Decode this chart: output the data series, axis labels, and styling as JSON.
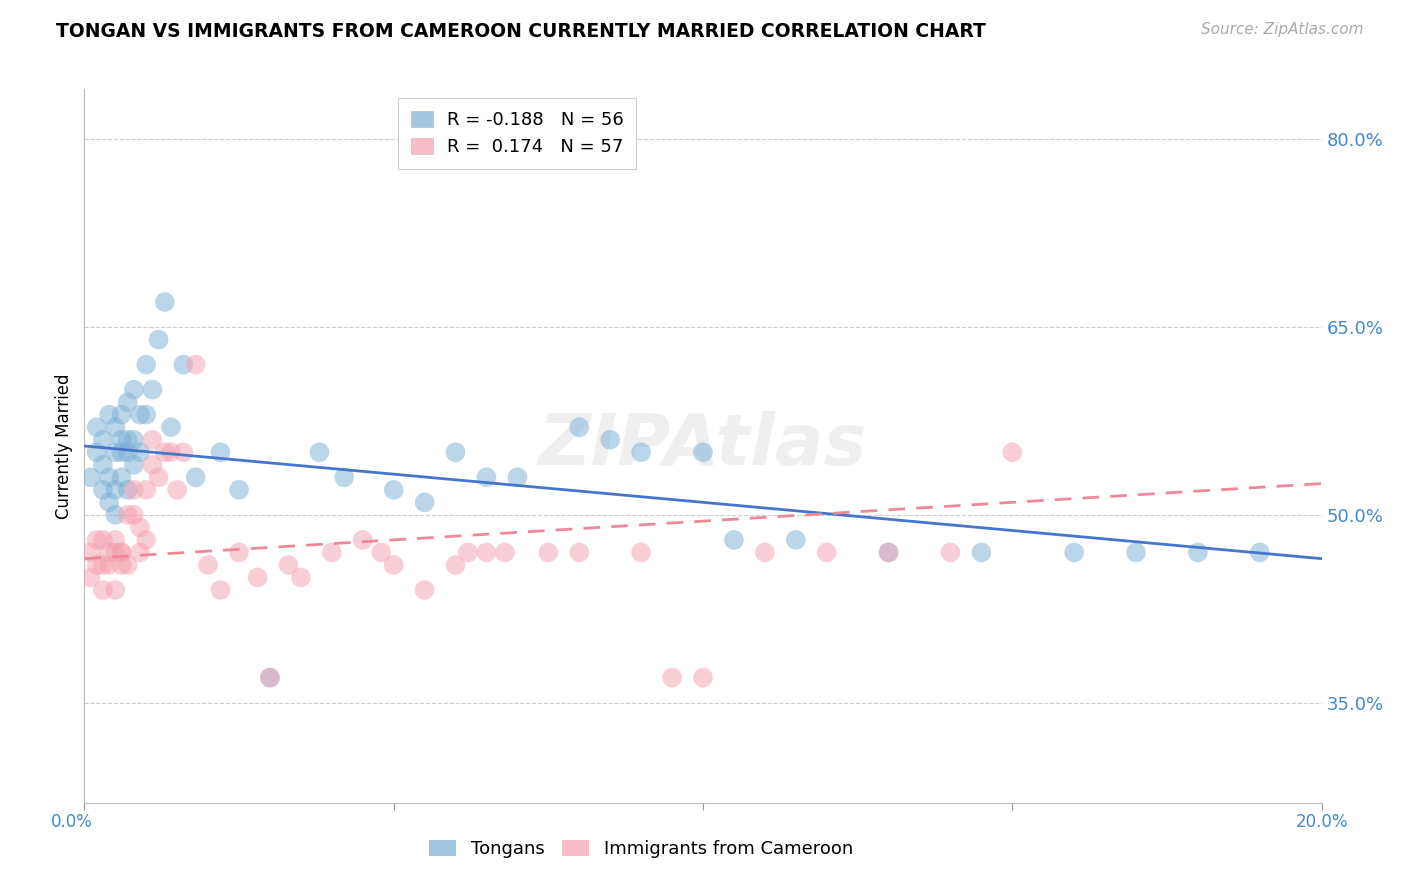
{
  "title": "TONGAN VS IMMIGRANTS FROM CAMEROON CURRENTLY MARRIED CORRELATION CHART",
  "source": "Source: ZipAtlas.com",
  "ylabel": "Currently Married",
  "y_ticks": [
    0.35,
    0.5,
    0.65,
    0.8
  ],
  "y_tick_labels": [
    "35.0%",
    "50.0%",
    "65.0%",
    "80.0%"
  ],
  "x_min": 0.0,
  "x_max": 0.2,
  "y_min": 0.27,
  "y_max": 0.84,
  "legend_r1": "R = -0.188   N = 56",
  "legend_r2": "R =  0.174   N = 57",
  "blue_color": "#7BAFD4",
  "pink_color": "#F4A0B0",
  "blue_line_color": "#4477CC",
  "pink_line_color": "#EE8899",
  "axis_color": "#4488CC",
  "grid_color": "#CCCCCC",
  "background": "#FFFFFF",
  "tongan_x": [
    0.001,
    0.002,
    0.002,
    0.003,
    0.003,
    0.003,
    0.004,
    0.004,
    0.004,
    0.005,
    0.005,
    0.005,
    0.005,
    0.006,
    0.006,
    0.006,
    0.006,
    0.007,
    0.007,
    0.007,
    0.007,
    0.008,
    0.008,
    0.008,
    0.009,
    0.009,
    0.01,
    0.01,
    0.011,
    0.012,
    0.013,
    0.014,
    0.016,
    0.018,
    0.022,
    0.025,
    0.03,
    0.038,
    0.042,
    0.05,
    0.055,
    0.06,
    0.065,
    0.07,
    0.08,
    0.085,
    0.09,
    0.1,
    0.105,
    0.115,
    0.13,
    0.145,
    0.16,
    0.17,
    0.18,
    0.19
  ],
  "tongan_y": [
    0.53,
    0.55,
    0.57,
    0.52,
    0.54,
    0.56,
    0.51,
    0.53,
    0.58,
    0.55,
    0.57,
    0.52,
    0.5,
    0.56,
    0.58,
    0.53,
    0.55,
    0.59,
    0.55,
    0.56,
    0.52,
    0.6,
    0.54,
    0.56,
    0.55,
    0.58,
    0.62,
    0.58,
    0.6,
    0.64,
    0.67,
    0.57,
    0.62,
    0.53,
    0.55,
    0.52,
    0.37,
    0.55,
    0.53,
    0.52,
    0.51,
    0.55,
    0.53,
    0.53,
    0.57,
    0.56,
    0.55,
    0.55,
    0.48,
    0.48,
    0.47,
    0.47,
    0.47,
    0.47,
    0.47,
    0.47
  ],
  "cameroon_x": [
    0.001,
    0.001,
    0.002,
    0.002,
    0.003,
    0.003,
    0.003,
    0.004,
    0.004,
    0.005,
    0.005,
    0.005,
    0.006,
    0.006,
    0.006,
    0.007,
    0.007,
    0.008,
    0.008,
    0.009,
    0.009,
    0.01,
    0.01,
    0.011,
    0.011,
    0.012,
    0.013,
    0.014,
    0.015,
    0.016,
    0.018,
    0.02,
    0.022,
    0.025,
    0.028,
    0.03,
    0.033,
    0.035,
    0.04,
    0.045,
    0.048,
    0.05,
    0.055,
    0.06,
    0.062,
    0.065,
    0.068,
    0.075,
    0.08,
    0.09,
    0.095,
    0.1,
    0.11,
    0.12,
    0.13,
    0.14,
    0.15
  ],
  "cameroon_y": [
    0.47,
    0.45,
    0.46,
    0.48,
    0.46,
    0.44,
    0.48,
    0.46,
    0.47,
    0.44,
    0.48,
    0.47,
    0.46,
    0.47,
    0.47,
    0.46,
    0.5,
    0.5,
    0.52,
    0.47,
    0.49,
    0.52,
    0.48,
    0.54,
    0.56,
    0.53,
    0.55,
    0.55,
    0.52,
    0.55,
    0.62,
    0.46,
    0.44,
    0.47,
    0.45,
    0.37,
    0.46,
    0.45,
    0.47,
    0.48,
    0.47,
    0.46,
    0.44,
    0.46,
    0.47,
    0.47,
    0.47,
    0.47,
    0.47,
    0.47,
    0.37,
    0.37,
    0.47,
    0.47,
    0.47,
    0.47,
    0.55
  ],
  "tongan_trend_x": [
    0.0,
    0.2
  ],
  "tongan_trend_y": [
    0.555,
    0.465
  ],
  "cameroon_trend_x": [
    0.0,
    0.2
  ],
  "cameroon_trend_y": [
    0.465,
    0.525
  ]
}
